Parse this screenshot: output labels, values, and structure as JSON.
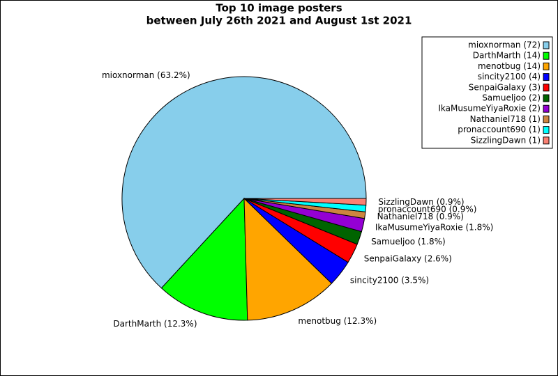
{
  "chart_data": {
    "type": "pie",
    "title": [
      "Top 10 image posters",
      "between July 26th 2021 and August 1st 2021"
    ],
    "categories": [
      "mioxnorman",
      "DarthMarth",
      "menotbug",
      "sincity2100",
      "SenpaiGalaxy",
      "Samueljoo",
      "IkaMusumeYiyaRoxie",
      "Nathaniel718",
      "pronaccount690",
      "SizzlingDawn"
    ],
    "values": [
      72,
      14,
      14,
      4,
      3,
      2,
      2,
      1,
      1,
      1
    ],
    "legend_labels": [
      "mioxnorman (72)",
      "DarthMarth (14)",
      "menotbug (14)",
      "sincity2100 (4)",
      "SenpaiGalaxy (3)",
      "Samueljoo (2)",
      "IkaMusumeYiyaRoxie (2)",
      "Nathaniel718 (1)",
      "pronaccount690 (1)",
      "SizzlingDawn (1)"
    ],
    "value_labels": [
      "mioxnorman (63.2%)",
      "DarthMarth (12.3%)",
      "menotbug (12.3%)",
      "sincity2100 (3.5%)",
      "SenpaiGalaxy (2.6%)",
      "Samueljoo (1.8%)",
      "IkaMusumeYiyaRoxie (1.8%)",
      "Nathaniel718 (0.9%)",
      "pronaccount690 (0.9%)",
      "SizzlingDawn (0.9%)"
    ],
    "colors": [
      "#87ceeb",
      "#00ff00",
      "#ffa500",
      "#0000ff",
      "#ff0000",
      "#006400",
      "#9400d3",
      "#cd853f",
      "#00ffff",
      "#fa8072"
    ],
    "legend": "upper right"
  }
}
